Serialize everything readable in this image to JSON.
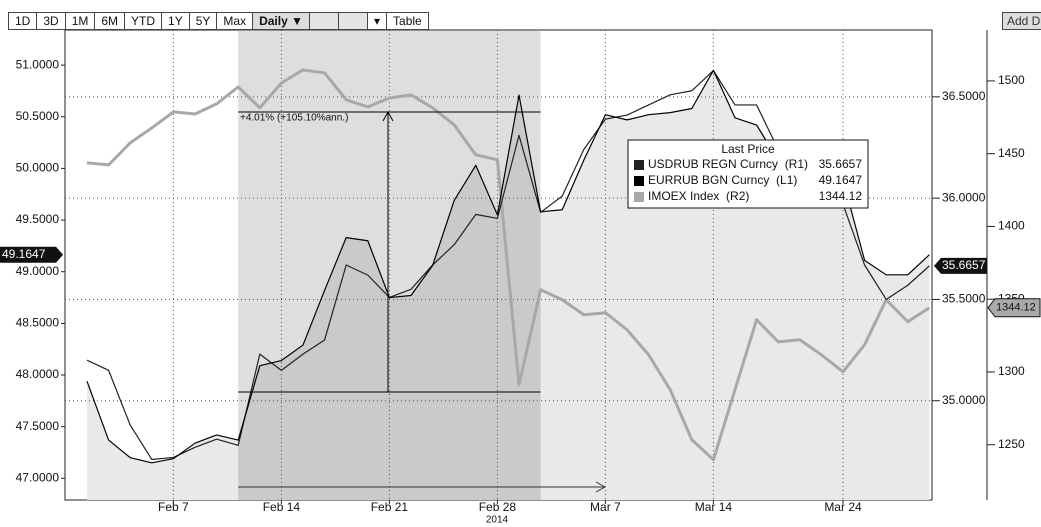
{
  "toolbar": {
    "buttons": [
      "1D",
      "3D",
      "1M",
      "6M",
      "YTD",
      "1Y",
      "5Y",
      "Max",
      "Daily ▼",
      "▾",
      "Table"
    ],
    "add": "Add D"
  },
  "chart_data": {
    "type": "line",
    "categories": [
      null,
      null,
      null,
      null,
      "Feb 7",
      null,
      null,
      null,
      null,
      "Feb 14",
      null,
      null,
      null,
      null,
      "Feb 21",
      null,
      null,
      null,
      null,
      "Feb 28",
      null,
      null,
      null,
      null,
      "Mar 7",
      null,
      null,
      null,
      null,
      "Mar 14",
      null,
      null,
      null,
      null,
      null,
      "Mar 24",
      null,
      null,
      null,
      null
    ],
    "xlabel": "2014",
    "series": [
      {
        "name": "USDRUB REGN Curncy  (R1)",
        "color": "#222222",
        "axis": "y2",
        "values": [
          35.2,
          35.15,
          34.88,
          34.71,
          34.72,
          34.77,
          34.81,
          34.78,
          35.23,
          35.15,
          35.23,
          35.3,
          35.67,
          35.62,
          35.51,
          35.55,
          35.67,
          35.77,
          35.92,
          35.9,
          36.31,
          35.93,
          36.01,
          36.24,
          36.39,
          36.41,
          36.46,
          36.51,
          36.53,
          36.63,
          36.46,
          36.46,
          36.24,
          36.14,
          36.04,
          35.97,
          35.67,
          35.5,
          35.57,
          35.6657
        ]
      },
      {
        "name": "EURRUB BGN Curncy  (L1)",
        "color": "#000000",
        "axis": "y",
        "values": [
          47.94,
          47.37,
          47.2,
          47.15,
          47.19,
          47.34,
          47.42,
          47.37,
          48.09,
          48.14,
          48.29,
          48.82,
          49.33,
          49.3,
          48.75,
          48.77,
          49.06,
          49.69,
          50.03,
          49.55,
          50.71,
          49.58,
          49.6,
          50.08,
          50.52,
          50.47,
          50.52,
          50.54,
          50.58,
          50.95,
          50.49,
          50.42,
          50.08,
          49.93,
          49.79,
          49.89,
          49.11,
          48.97,
          48.97,
          49.1647
        ]
      },
      {
        "name": "IMOEX Index  (R2)",
        "color": "#a8a8a8",
        "axis": "y3",
        "values": [
          1443.7,
          1442.3,
          1457.4,
          1467.7,
          1478.7,
          1477.3,
          1484.2,
          1495.9,
          1481.5,
          1498.6,
          1507.6,
          1505.5,
          1487.0,
          1482.1,
          1488.3,
          1490.4,
          1481.5,
          1469.8,
          1449.2,
          1445.8,
          1291.2,
          1356.5,
          1349.6,
          1339.3,
          1340.7,
          1329.0,
          1311.8,
          1287.8,
          1253.4,
          1239.7,
          1287.8,
          1335.9,
          1320.7,
          1322.1,
          1311.8,
          1300.1,
          1318.7,
          1349.6,
          1334.5,
          1344.12
        ]
      }
    ],
    "ylim": [
      46.79,
      51.34
    ],
    "yticks": [
      {
        "value": 47,
        "label": "47.0000"
      },
      {
        "value": 47.5,
        "label": "47.5000"
      },
      {
        "value": 48,
        "label": "48.0000"
      },
      {
        "value": 48.5,
        "label": "48.5000"
      },
      {
        "value": 49,
        "label": "49.0000"
      },
      {
        "value": 49.5,
        "label": "49.5000"
      },
      {
        "value": 50,
        "label": "50.0000"
      },
      {
        "value": 50.5,
        "label": "50.5000"
      },
      {
        "value": 51,
        "label": "51.0000"
      }
    ],
    "y2lim": [
      34.51,
      36.83
    ],
    "y2ticks": [
      {
        "value": 35,
        "label": "35.0000"
      },
      {
        "value": 35.5,
        "label": "35.5000"
      },
      {
        "value": 36,
        "label": "36.0000"
      },
      {
        "value": 36.5,
        "label": "36.5000"
      }
    ],
    "y3lim": [
      1212,
      1535
    ],
    "y3ticks": [
      1250,
      1300,
      1350,
      1400,
      1450,
      1500
    ],
    "grid": true,
    "legend": {
      "title": "Last Price",
      "position": "upper right"
    },
    "annotation": "+4.01% (+105.10%ann.)"
  }
}
